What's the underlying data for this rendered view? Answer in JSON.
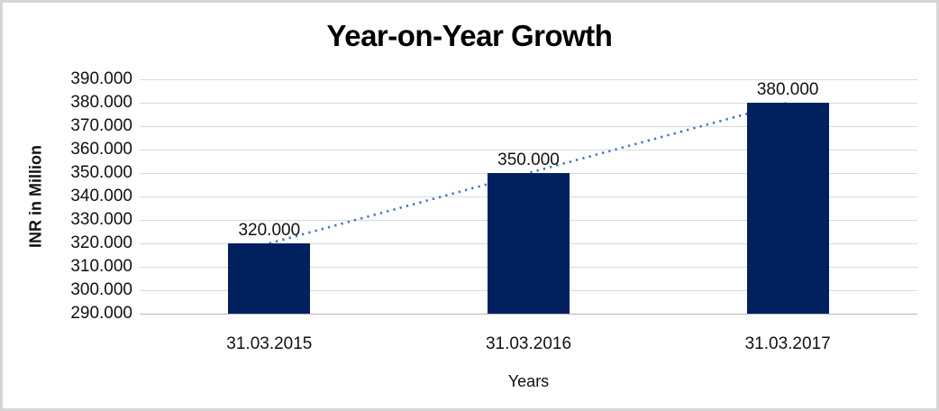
{
  "frame": {
    "background": "#ffffff",
    "border_color": "#d6d6d6"
  },
  "chart_data": {
    "type": "bar",
    "title": "Year-on-Year Growth",
    "xlabel": "Years",
    "ylabel": "INR in Million",
    "categories": [
      "31.03.2015",
      "31.03.2016",
      "31.03.2017"
    ],
    "values": [
      320000,
      350000,
      380000
    ],
    "value_labels": [
      "320.000",
      "350.000",
      "380.000"
    ],
    "ylim": [
      290000,
      390000
    ],
    "ytick_step": 10000,
    "ytick_labels": [
      "390.000",
      "380.000",
      "370.000",
      "360.000",
      "350.000",
      "340.000",
      "330.000",
      "320.000",
      "310.000",
      "300.000",
      "290.000"
    ],
    "grid": true,
    "legend_position": "none",
    "bar_color": "#002060",
    "gridline_color": "#d9d9d9",
    "axis_line_color": "#b5b5b5",
    "trendline": {
      "type": "linear",
      "style": "dotted",
      "color": "#4472C4"
    }
  }
}
